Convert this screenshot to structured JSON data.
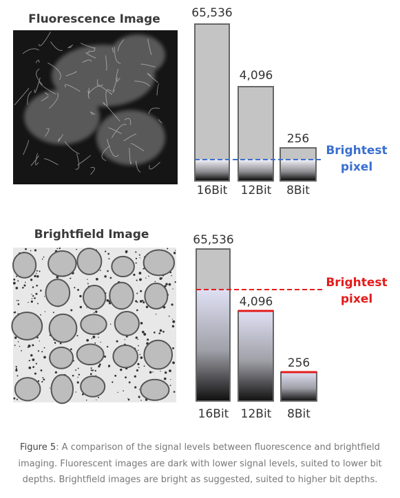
{
  "panels": [
    {
      "title": "Fluorescence Image",
      "bars": [
        {
          "top_label": "65,536",
          "label": "16Bit"
        },
        {
          "top_label": "4,096",
          "label": "12Bit"
        },
        {
          "top_label": "256",
          "label": "8Bit"
        }
      ],
      "marker": [
        "Brightest",
        "pixel"
      ]
    },
    {
      "title": "Brightfield Image",
      "bars": [
        {
          "top_label": "65,536",
          "label": "16Bit"
        },
        {
          "top_label": "4,096",
          "label": "12Bit"
        },
        {
          "top_label": "256",
          "label": "8Bit"
        }
      ],
      "marker": [
        "Brightest",
        "pixel"
      ]
    }
  ],
  "caption": {
    "label": "Figure 5",
    "text": ": A comparison of the signal levels between fluorescence and brightfield imaging. Fluorescent images are dark with lower signal levels, suited to lower bit depths. Brightfield images are bright as suggested, suited to higher bit depths."
  }
}
